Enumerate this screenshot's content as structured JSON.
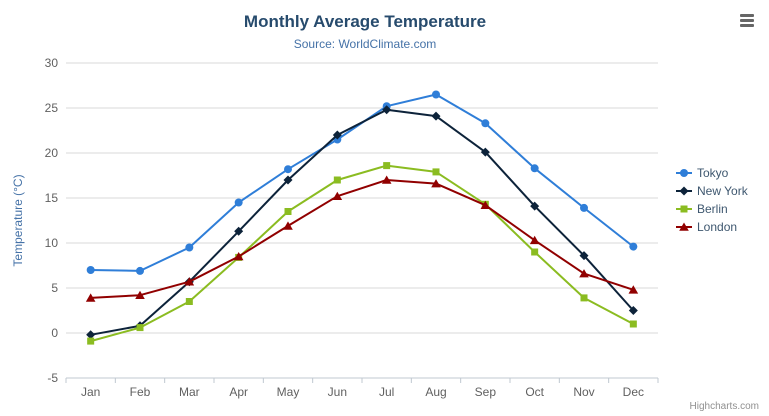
{
  "chart_data": {
    "type": "line",
    "title": "Monthly Average Temperature",
    "subtitle": "Source: WorldClimate.com",
    "credits": "Highcharts.com",
    "categories": [
      "Jan",
      "Feb",
      "Mar",
      "Apr",
      "May",
      "Jun",
      "Jul",
      "Aug",
      "Sep",
      "Oct",
      "Nov",
      "Dec"
    ],
    "xlabel": "",
    "ylabel": "Temperature (°C)",
    "ylim": [
      -5,
      30
    ],
    "ytick_step": 5,
    "grid": true,
    "legend_position": "right",
    "series": [
      {
        "name": "Tokyo",
        "color": "#2f7ed8",
        "marker": "circle",
        "values": [
          7.0,
          6.9,
          9.5,
          14.5,
          18.2,
          21.5,
          25.2,
          26.5,
          23.3,
          18.3,
          13.9,
          9.6
        ]
      },
      {
        "name": "New York",
        "color": "#0d233a",
        "marker": "diamond",
        "values": [
          -0.2,
          0.8,
          5.7,
          11.3,
          17.0,
          22.0,
          24.8,
          24.1,
          20.1,
          14.1,
          8.6,
          2.5
        ]
      },
      {
        "name": "Berlin",
        "color": "#8bbc21",
        "marker": "square",
        "values": [
          -0.9,
          0.6,
          3.5,
          8.4,
          13.5,
          17.0,
          18.6,
          17.9,
          14.3,
          9.0,
          3.9,
          1.0
        ]
      },
      {
        "name": "London",
        "color": "#910000",
        "marker": "triangle",
        "values": [
          3.9,
          4.2,
          5.7,
          8.5,
          11.9,
          15.2,
          17.0,
          16.6,
          14.2,
          10.3,
          6.6,
          4.8
        ]
      }
    ],
    "colors": {
      "title": "#274b6d",
      "subtitle": "#4572A7",
      "axis_label": "#606060",
      "axis_title": "#4572A7",
      "gridline": "#D8D8D8",
      "axis_line": "#C0C8D0",
      "legend_text": "#3E576F",
      "credits_text": "#909090",
      "menu_icon": "#666666"
    },
    "icons": {
      "context_menu": "hamburger-menu-icon"
    }
  }
}
